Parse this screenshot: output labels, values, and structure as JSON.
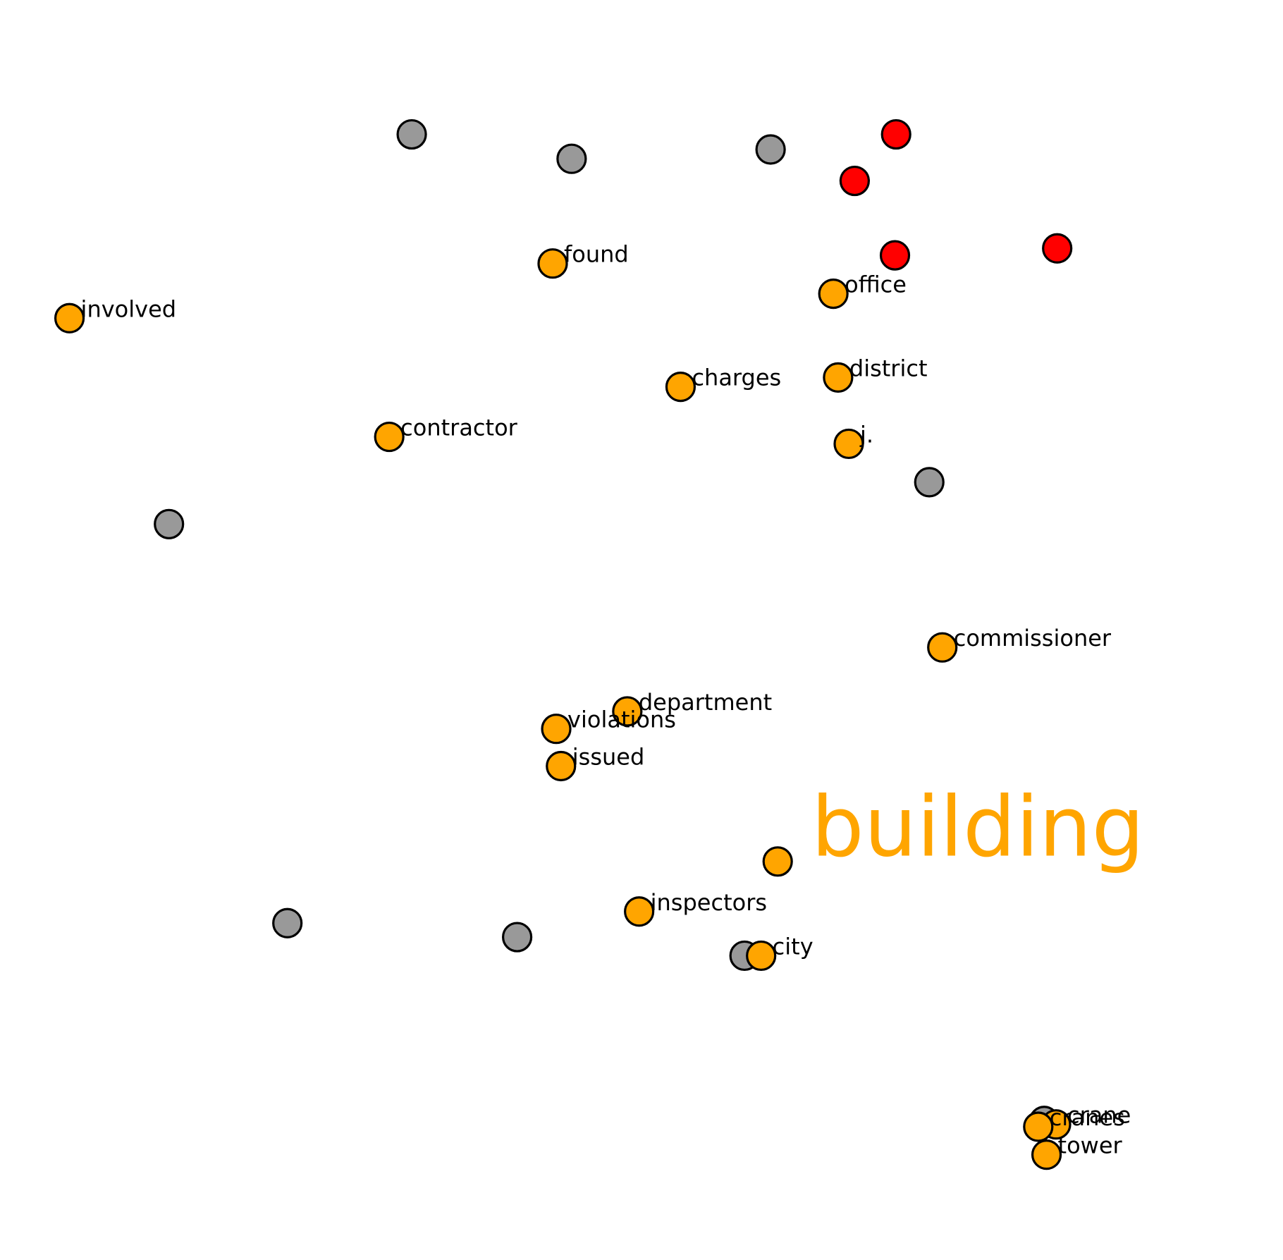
{
  "chart_data": {
    "type": "scatter",
    "title": "",
    "xlabel": "",
    "ylabel": "",
    "xlim": [
      0,
      100
    ],
    "ylim": [
      0,
      100
    ],
    "grid": false,
    "axes_visible": false,
    "colors": {
      "highlight": "#FFA500",
      "context": "#999999",
      "accent": "#FF0000"
    },
    "annotation": {
      "text": "building",
      "x": 78.4,
      "y": 31.3,
      "color": "#FFA500"
    },
    "series": [
      {
        "color": "#999999",
        "points": [
          {
            "x": 30.6,
            "y": 93.3
          },
          {
            "x": 44.1,
            "y": 91.2
          },
          {
            "x": 60.9,
            "y": 92.0
          },
          {
            "x": 74.3,
            "y": 63.4
          },
          {
            "x": 10.1,
            "y": 59.8
          },
          {
            "x": 20.1,
            "y": 25.5
          },
          {
            "x": 39.5,
            "y": 24.3
          },
          {
            "x": 58.7,
            "y": 22.7
          },
          {
            "x": 84.0,
            "y": 8.5
          }
        ]
      },
      {
        "color": "#FF0000",
        "points": [
          {
            "x": 71.5,
            "y": 93.3
          },
          {
            "x": 68.0,
            "y": 89.3
          },
          {
            "x": 71.4,
            "y": 82.9
          },
          {
            "x": 85.1,
            "y": 83.5
          }
        ]
      },
      {
        "color": "#FFA500",
        "points": [
          {
            "x": 42.5,
            "y": 82.2,
            "label": "found"
          },
          {
            "x": 66.2,
            "y": 79.6,
            "label": "office"
          },
          {
            "x": 1.7,
            "y": 77.5,
            "label": "involved"
          },
          {
            "x": 53.3,
            "y": 71.6,
            "label": "charges"
          },
          {
            "x": 66.6,
            "y": 72.4,
            "label": "district"
          },
          {
            "x": 28.7,
            "y": 67.3,
            "label": "contractor"
          },
          {
            "x": 67.5,
            "y": 66.7,
            "label": "j."
          },
          {
            "x": 75.4,
            "y": 49.2,
            "label": "commissioner"
          },
          {
            "x": 48.8,
            "y": 43.7,
            "label": "department"
          },
          {
            "x": 42.8,
            "y": 42.2,
            "label": "violations"
          },
          {
            "x": 43.2,
            "y": 39.0,
            "label": "issued"
          },
          {
            "x": 61.5,
            "y": 30.8
          },
          {
            "x": 49.8,
            "y": 26.5,
            "label": "inspectors"
          },
          {
            "x": 60.1,
            "y": 22.7,
            "label": "city"
          },
          {
            "x": 85.0,
            "y": 8.2,
            "label": "crane"
          },
          {
            "x": 83.5,
            "y": 8.0,
            "label": "cranes"
          },
          {
            "x": 84.2,
            "y": 5.6,
            "label": "tower"
          }
        ]
      }
    ]
  }
}
